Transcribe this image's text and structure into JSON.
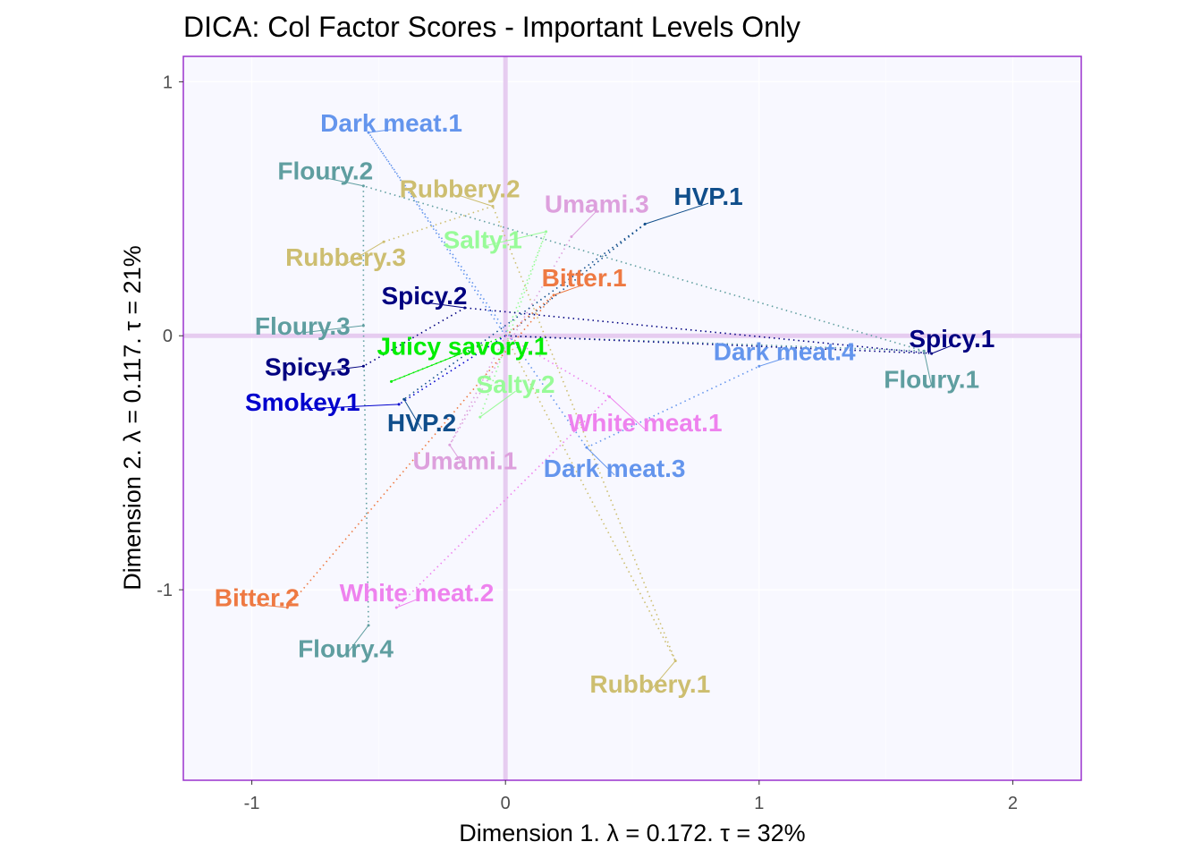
{
  "chart_data": {
    "type": "scatter",
    "title": "DICA: Col Factor Scores - Important Levels Only",
    "xlabel": "Dimension 1.   λ = 0.172.  τ = 32%",
    "ylabel": "Dimension 2.  λ = 0.117.  τ = 21%",
    "xlim": [
      -1.27,
      2.27
    ],
    "ylim": [
      -1.75,
      1.1
    ],
    "xticks": [
      -1,
      0,
      1,
      2
    ],
    "yticks": [
      -1,
      0,
      1
    ],
    "xtick_labels": [
      "-1",
      "0",
      "1",
      "2"
    ],
    "ytick_labels": [
      "-1",
      "0",
      "1"
    ],
    "grid": true,
    "colors": {
      "background": "#F8F8FF",
      "border": "#9A32CD",
      "origin_lines": "#E6CCF0",
      "grid": "#FFFFFF"
    },
    "variables": [
      {
        "name": "Dark meat",
        "color": "#6495ED"
      },
      {
        "name": "Floury",
        "color": "#5F9EA0"
      },
      {
        "name": "Rubbery",
        "color": "#CDBE70"
      },
      {
        "name": "Umami",
        "color": "#DDA0DD"
      },
      {
        "name": "HVP",
        "color": "#104E8B"
      },
      {
        "name": "Salty",
        "color": "#98FB98"
      },
      {
        "name": "Bitter",
        "color": "#EE7942"
      },
      {
        "name": "Spicy",
        "color": "#000080"
      },
      {
        "name": "Juicy savory",
        "color": "#00EE00"
      },
      {
        "name": "Smokey",
        "color": "#0000CD"
      },
      {
        "name": "White meat",
        "color": "#EE82EE"
      }
    ],
    "points": [
      {
        "label": "Dark meat.1",
        "variable": "Dark meat",
        "x": -0.54,
        "y": 0.8,
        "label_x": -0.45,
        "label_y": 0.84
      },
      {
        "label": "Dark meat.3",
        "variable": "Dark meat",
        "x": 0.32,
        "y": -0.44,
        "label_x": 0.43,
        "label_y": -0.52
      },
      {
        "label": "Dark meat.4",
        "variable": "Dark meat",
        "x": 1.0,
        "y": -0.12,
        "label_x": 1.1,
        "label_y": -0.06
      },
      {
        "label": "Floury.1",
        "variable": "Floury",
        "x": 1.65,
        "y": -0.06,
        "label_x": 1.68,
        "label_y": -0.17
      },
      {
        "label": "Floury.2",
        "variable": "Floury",
        "x": -0.56,
        "y": 0.59,
        "label_x": -0.71,
        "label_y": 0.65
      },
      {
        "label": "Floury.3",
        "variable": "Floury",
        "x": -0.56,
        "y": 0.04,
        "label_x": -0.8,
        "label_y": 0.04
      },
      {
        "label": "Floury.4",
        "variable": "Floury",
        "x": -0.54,
        "y": -1.14,
        "label_x": -0.63,
        "label_y": -1.23
      },
      {
        "label": "Rubbery.1",
        "variable": "Rubbery",
        "x": 0.67,
        "y": -1.28,
        "label_x": 0.57,
        "label_y": -1.37
      },
      {
        "label": "Rubbery.2",
        "variable": "Rubbery",
        "x": -0.05,
        "y": 0.51,
        "label_x": -0.18,
        "label_y": 0.58
      },
      {
        "label": "Rubbery.3",
        "variable": "Rubbery",
        "x": -0.48,
        "y": 0.37,
        "label_x": -0.63,
        "label_y": 0.31
      },
      {
        "label": "Umami.1",
        "variable": "Umami",
        "x": -0.22,
        "y": -0.43,
        "label_x": -0.16,
        "label_y": -0.49
      },
      {
        "label": "Umami.3",
        "variable": "Umami",
        "x": 0.26,
        "y": 0.39,
        "label_x": 0.36,
        "label_y": 0.52
      },
      {
        "label": "HVP.1",
        "variable": "HVP",
        "x": 0.55,
        "y": 0.44,
        "label_x": 0.8,
        "label_y": 0.55
      },
      {
        "label": "HVP.2",
        "variable": "HVP",
        "x": -0.4,
        "y": -0.25,
        "label_x": -0.33,
        "label_y": -0.34
      },
      {
        "label": "Salty.1",
        "variable": "Salty",
        "x": 0.16,
        "y": 0.41,
        "label_x": -0.09,
        "label_y": 0.38
      },
      {
        "label": "Salty.2",
        "variable": "Salty",
        "x": -0.1,
        "y": -0.32,
        "label_x": 0.04,
        "label_y": -0.19
      },
      {
        "label": "Bitter.1",
        "variable": "Bitter",
        "x": 0.19,
        "y": 0.16,
        "label_x": 0.31,
        "label_y": 0.23
      },
      {
        "label": "Bitter.2",
        "variable": "Bitter",
        "x": -0.86,
        "y": -1.07,
        "label_x": -0.98,
        "label_y": -1.03
      },
      {
        "label": "Spicy.1",
        "variable": "Spicy",
        "x": 1.68,
        "y": -0.07,
        "label_x": 1.76,
        "label_y": -0.01
      },
      {
        "label": "Spicy.2",
        "variable": "Spicy",
        "x": -0.16,
        "y": 0.11,
        "label_x": -0.32,
        "label_y": 0.16
      },
      {
        "label": "Spicy.3",
        "variable": "Spicy",
        "x": -0.56,
        "y": -0.12,
        "label_x": -0.78,
        "label_y": -0.12
      },
      {
        "label": "Juicy savory.1",
        "variable": "Juicy savory",
        "x": -0.45,
        "y": -0.18,
        "label_x": -0.17,
        "label_y": -0.04
      },
      {
        "label": "Smokey.1",
        "variable": "Smokey",
        "x": -0.42,
        "y": -0.27,
        "label_x": -0.8,
        "label_y": -0.26
      },
      {
        "label": "White meat.1",
        "variable": "White meat",
        "x": 0.41,
        "y": -0.24,
        "label_x": 0.55,
        "label_y": -0.34
      },
      {
        "label": "White meat.2",
        "variable": "White meat",
        "x": -0.43,
        "y": -1.07,
        "label_x": -0.35,
        "label_y": -1.01
      }
    ]
  }
}
